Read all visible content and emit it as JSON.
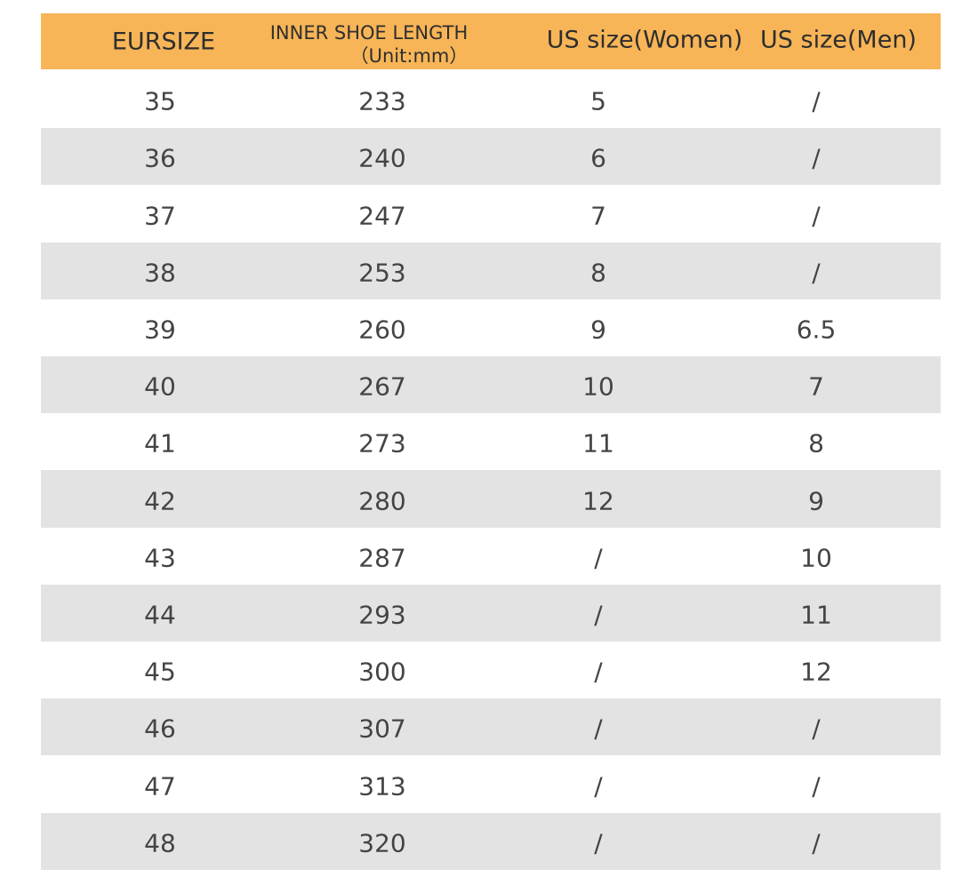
{
  "table": {
    "header": [
      "EURSIZE",
      "INNER SHOE LENGTH",
      "US size(Women)",
      "US size(Men)"
    ],
    "header_unit": "（Unit:mm）",
    "rows": [
      [
        "35",
        "233",
        "5",
        "/"
      ],
      [
        "36",
        "240",
        "6",
        "/"
      ],
      [
        "37",
        "247",
        "7",
        "/"
      ],
      [
        "38",
        "253",
        "8",
        "/"
      ],
      [
        "39",
        "260",
        "9",
        "6.5"
      ],
      [
        "40",
        "267",
        "10",
        "7"
      ],
      [
        "41",
        "273",
        "11",
        "8"
      ],
      [
        "42",
        "280",
        "12",
        "9"
      ],
      [
        "43",
        "287",
        "/",
        "10"
      ],
      [
        "44",
        "293",
        "/",
        "11"
      ],
      [
        "45",
        "300",
        "/",
        "12"
      ],
      [
        "46",
        "307",
        "/",
        "/"
      ],
      [
        "47",
        "313",
        "/",
        "/"
      ],
      [
        "48",
        "320",
        "/",
        "/"
      ]
    ]
  }
}
